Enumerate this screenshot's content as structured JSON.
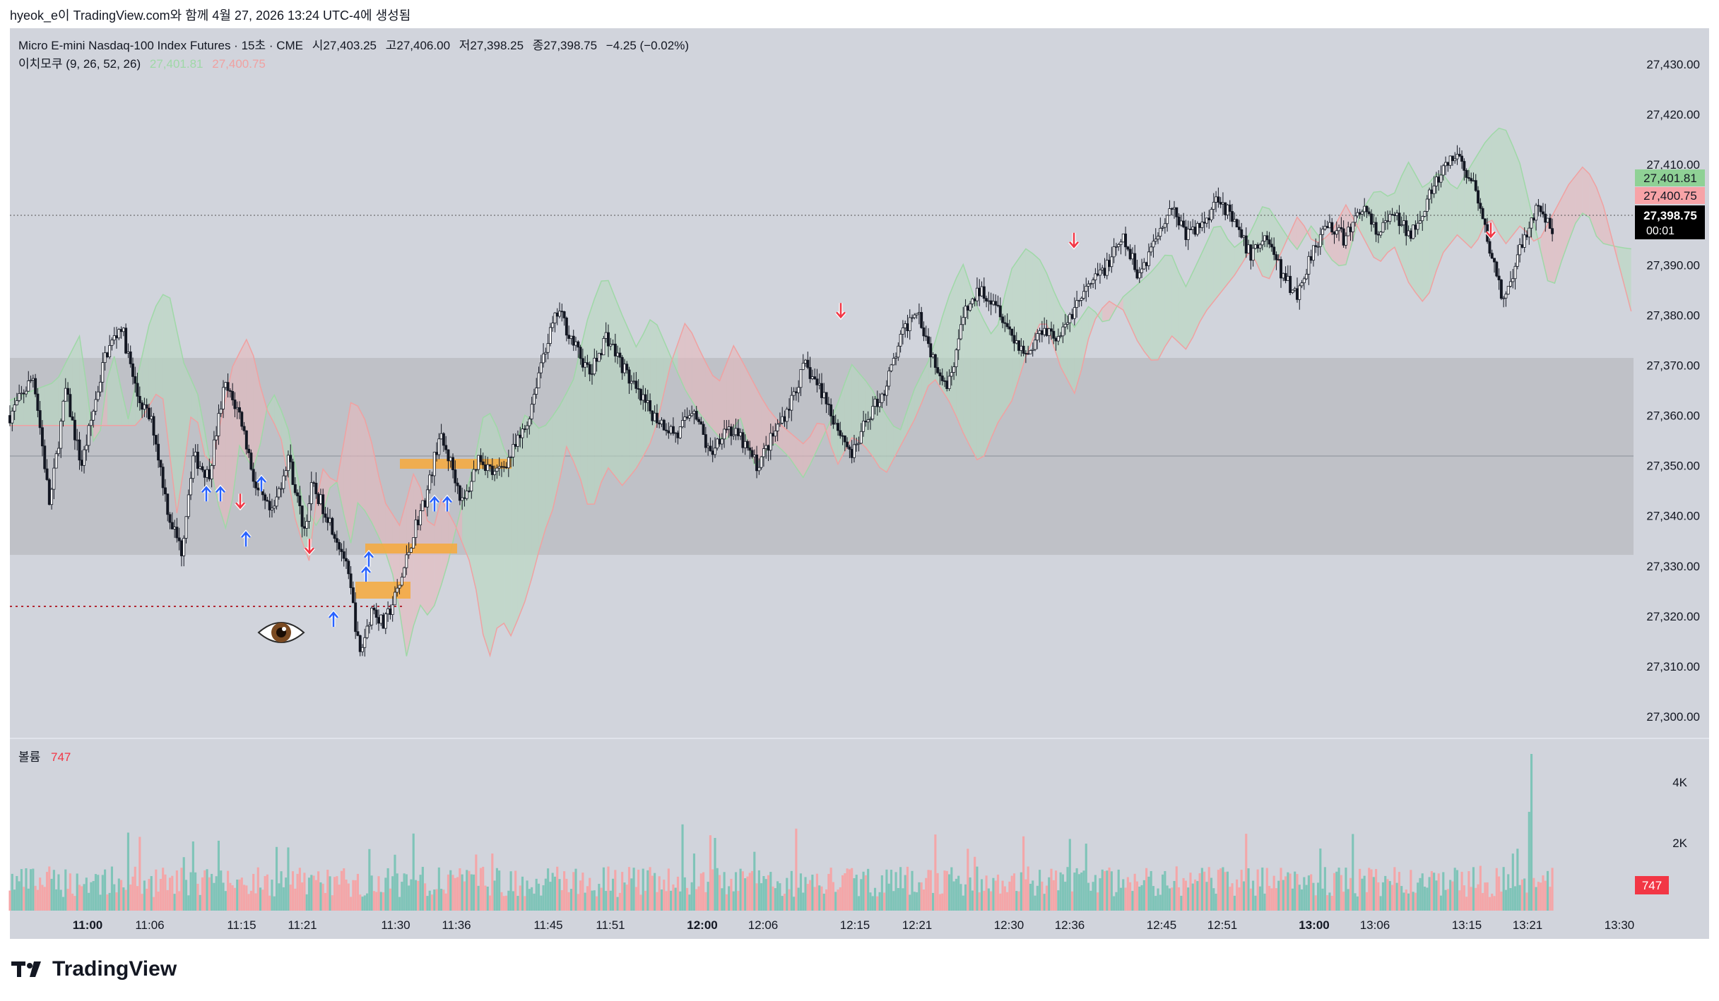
{
  "caption": "hyeok_e이 TradingView.com와 함께 4월 27, 2026 13:24 UTC-4에 생성됨",
  "legend": {
    "symbol": "Micro E-mini Nasdaq-100 Index Futures · 15초 · CME",
    "open": "시27,403.25",
    "high": "고27,406.00",
    "low": "저27,398.25",
    "close": "종27,398.75",
    "change": "−4.25 (−0.02%)",
    "ichimoku_name": "이치모쿠 (9, 26, 52, 26)",
    "ichimoku_a": "27,401.81",
    "ichimoku_b": "27,400.75"
  },
  "volume_legend": {
    "name": "볼륨",
    "value": "747"
  },
  "price_badges": {
    "green": "27,401.81",
    "red": "27,400.75",
    "last": "27,398.75",
    "countdown": "00:01",
    "volume": "747"
  },
  "footer": {
    "brand": "TradingView"
  },
  "colors": {
    "up_candle": "#131722",
    "cloud_green": "#b8d9c0",
    "cloud_red": "#e6b9bd",
    "zone": "#bfc1c7",
    "box": "#f7a93b",
    "signal_up": "#2962ff",
    "signal_down": "#f23645"
  },
  "chart_data": {
    "type": "candlestick",
    "y_axis": {
      "min": 27300,
      "max": 27430,
      "ticks": [
        "27,430.00",
        "27,420.00",
        "27,410.00",
        "27,400.00",
        "27,390.00",
        "27,380.00",
        "27,370.00",
        "27,360.00",
        "27,350.00",
        "27,340.00",
        "27,330.00",
        "27,320.00",
        "27,310.00",
        "27,300.00"
      ]
    },
    "x_axis": {
      "ticks": [
        "11:00",
        "11:06",
        "11:15",
        "11:21",
        "11:30",
        "11:36",
        "11:45",
        "11:51",
        "12:00",
        "12:06",
        "12:15",
        "12:21",
        "12:30",
        "12:36",
        "12:45",
        "12:51",
        "13:00",
        "13:06",
        "13:15",
        "13:21",
        "13:30"
      ],
      "bold": [
        "11:00",
        "12:00",
        "13:00"
      ]
    },
    "volume_axis": {
      "ticks": [
        "4K",
        "2K"
      ]
    },
    "current_price": 27398.75,
    "zone": {
      "from": 27331,
      "to": 27370
    },
    "zone_midline": 27351,
    "dotted_level": 27322,
    "price_path": [
      [
        0,
        27360
      ],
      [
        15,
        27368
      ],
      [
        25,
        27342
      ],
      [
        35,
        27365
      ],
      [
        45,
        27350
      ],
      [
        60,
        27372
      ],
      [
        70,
        27378
      ],
      [
        80,
        27364
      ],
      [
        90,
        27358
      ],
      [
        100,
        27340
      ],
      [
        108,
        27333
      ],
      [
        115,
        27352
      ],
      [
        125,
        27348
      ],
      [
        135,
        27366
      ],
      [
        145,
        27360
      ],
      [
        155,
        27345
      ],
      [
        165,
        27340
      ],
      [
        175,
        27352
      ],
      [
        185,
        27337
      ],
      [
        190,
        27346
      ],
      [
        200,
        27340
      ],
      [
        210,
        27332
      ],
      [
        215,
        27324
      ],
      [
        220,
        27312
      ],
      [
        228,
        27322
      ],
      [
        235,
        27318
      ],
      [
        245,
        27326
      ],
      [
        255,
        27338
      ],
      [
        262,
        27344
      ],
      [
        270,
        27356
      ],
      [
        278,
        27350
      ],
      [
        285,
        27342
      ],
      [
        295,
        27352
      ],
      [
        305,
        27348
      ],
      [
        315,
        27352
      ],
      [
        325,
        27358
      ],
      [
        335,
        27372
      ],
      [
        345,
        27381
      ],
      [
        355,
        27374
      ],
      [
        365,
        27368
      ],
      [
        375,
        27376
      ],
      [
        385,
        27370
      ],
      [
        395,
        27364
      ],
      [
        405,
        27360
      ],
      [
        420,
        27356
      ],
      [
        430,
        27362
      ],
      [
        440,
        27352
      ],
      [
        450,
        27358
      ],
      [
        460,
        27355
      ],
      [
        470,
        27350
      ],
      [
        480,
        27356
      ],
      [
        490,
        27362
      ],
      [
        500,
        27370
      ],
      [
        512,
        27364
      ],
      [
        520,
        27358
      ],
      [
        530,
        27352
      ],
      [
        540,
        27360
      ],
      [
        550,
        27365
      ],
      [
        560,
        27375
      ],
      [
        570,
        27382
      ],
      [
        580,
        27372
      ],
      [
        590,
        27366
      ],
      [
        600,
        27380
      ],
      [
        610,
        27385
      ],
      [
        620,
        27383
      ],
      [
        630,
        27376
      ],
      [
        640,
        27372
      ],
      [
        650,
        27378
      ],
      [
        660,
        27375
      ],
      [
        670,
        27382
      ],
      [
        680,
        27386
      ],
      [
        690,
        27390
      ],
      [
        700,
        27395
      ],
      [
        710,
        27388
      ],
      [
        720,
        27395
      ],
      [
        730,
        27402
      ],
      [
        740,
        27396
      ],
      [
        750,
        27398
      ],
      [
        760,
        27404
      ],
      [
        770,
        27398
      ],
      [
        780,
        27392
      ],
      [
        790,
        27396
      ],
      [
        800,
        27388
      ],
      [
        810,
        27384
      ],
      [
        820,
        27394
      ],
      [
        830,
        27398
      ],
      [
        840,
        27395
      ],
      [
        850,
        27402
      ],
      [
        860,
        27396
      ],
      [
        870,
        27400
      ],
      [
        880,
        27396
      ],
      [
        890,
        27402
      ],
      [
        900,
        27408
      ],
      [
        910,
        27412
      ],
      [
        920,
        27406
      ],
      [
        930,
        27394
      ],
      [
        940,
        27382
      ],
      [
        947,
        27390
      ],
      [
        955,
        27398
      ],
      [
        962,
        27402
      ],
      [
        970,
        27396
      ]
    ],
    "signals": [
      {
        "t": 190,
        "dir": "up",
        "price": 27344
      },
      {
        "t": 196,
        "dir": "up",
        "price": 27344
      },
      {
        "t": 207,
        "dir": "down",
        "price": 27343
      },
      {
        "t": 213,
        "dir": "up",
        "price": 27335
      },
      {
        "t": 223,
        "dir": "up",
        "price": 27346
      },
      {
        "t": 267,
        "dir": "down",
        "price": 27334
      },
      {
        "t": 293,
        "dir": "up",
        "price": 27319
      },
      {
        "t": 333,
        "dir": "up",
        "price": 27328
      },
      {
        "t": 337,
        "dir": "up",
        "price": 27331
      },
      {
        "t": 387,
        "dir": "up",
        "price": 27342
      },
      {
        "t": 398,
        "dir": "up",
        "price": 27342
      },
      {
        "t": 755,
        "dir": "down",
        "price": 27381
      },
      {
        "t": 965,
        "dir": "down",
        "price": 27395
      },
      {
        "t": 1330,
        "dir": "down",
        "price": 27397
      }
    ]
  }
}
